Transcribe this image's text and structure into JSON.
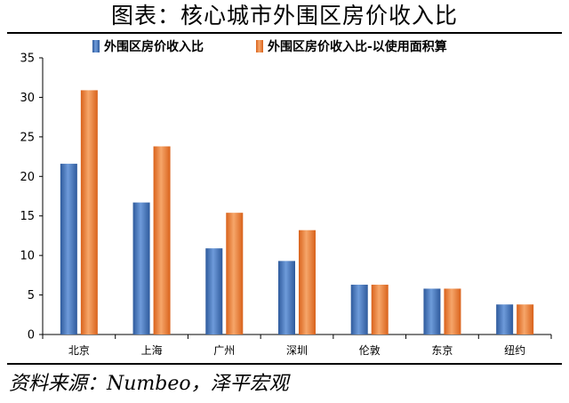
{
  "header": {
    "title": "图表：核心城市外围区房价收入比"
  },
  "footer": {
    "source": "资料来源：Numbeo，泽平宏观"
  },
  "chart_data": {
    "type": "bar",
    "title": "",
    "xlabel": "",
    "ylabel": "",
    "categories": [
      "北京",
      "上海",
      "广州",
      "深圳",
      "伦敦",
      "东京",
      "纽约"
    ],
    "series": [
      {
        "name": "外围区房价收入比",
        "values": [
          21.6,
          16.7,
          10.9,
          9.3,
          6.3,
          5.8,
          3.8
        ],
        "color": "#3F6FB6"
      },
      {
        "name": "外围区房价收入比-以使用面积算",
        "values": [
          30.9,
          23.8,
          15.4,
          13.2,
          6.3,
          5.8,
          3.8
        ],
        "color": "#EE7D32"
      }
    ],
    "ylim": [
      0,
      35
    ],
    "yticks": [
      0,
      5,
      10,
      15,
      20,
      25,
      30,
      35
    ],
    "legend_position": "top",
    "grid": false
  }
}
